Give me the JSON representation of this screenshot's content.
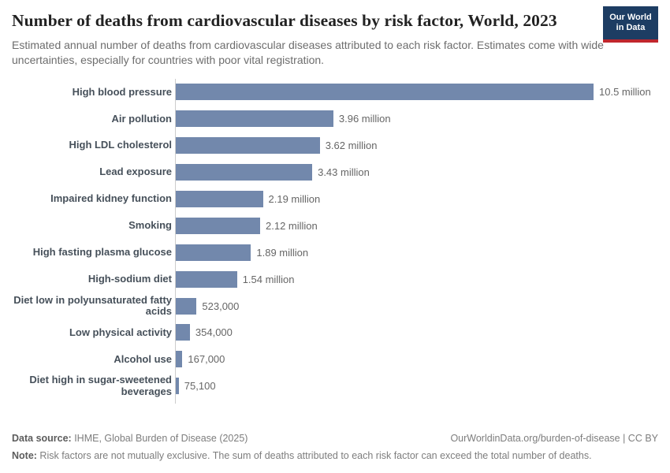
{
  "header": {
    "logo": {
      "line1": "Our World",
      "line2": "in Data"
    }
  },
  "chart_data": {
    "type": "bar",
    "orientation": "horizontal",
    "title": "Number of deaths from cardiovascular diseases by risk factor, World, 2023",
    "subtitle": "Estimated annual number of deaths from cardiovascular diseases attributed to each risk factor. Estimates come with wide uncertainties, especially for countries with poor vital registration.",
    "categories": [
      "High blood pressure",
      "Air pollution",
      "High LDL cholesterol",
      "Lead exposure",
      "Impaired kidney function",
      "Smoking",
      "High fasting plasma glucose",
      "High-sodium diet",
      "Diet low in polyunsaturated fatty acids",
      "Low physical activity",
      "Alcohol use",
      "Diet high in sugar-sweetened beverages"
    ],
    "values": [
      10500000,
      3960000,
      3620000,
      3430000,
      2190000,
      2120000,
      1890000,
      1540000,
      523000,
      354000,
      167000,
      75100
    ],
    "value_labels": [
      "10.5 million",
      "3.96 million",
      "3.62 million",
      "3.43 million",
      "2.19 million",
      "2.12 million",
      "1.89 million",
      "1.54 million",
      "523,000",
      "354,000",
      "167,000",
      "75,100"
    ],
    "xlim": [
      0,
      10500000
    ],
    "xlabel": "",
    "ylabel": "",
    "grid": false,
    "legend": false,
    "bar_color": "#7288ac"
  },
  "footer": {
    "datasource_label": "Data source:",
    "datasource_text": " IHME, Global Burden of Disease (2025)",
    "link_text": "OurWorldinData.org/burden-of-disease",
    "right_suffix": " | CC BY",
    "note_label": "Note:",
    "note_text": " Risk factors are not mutually exclusive. The sum of deaths attributed to each risk factor can exceed the total number of deaths."
  },
  "colors": {
    "bar": "#7288ac",
    "logo_navy": "#1d3d63",
    "logo_red": "#c0262d",
    "axis_line": "#cccccc"
  }
}
